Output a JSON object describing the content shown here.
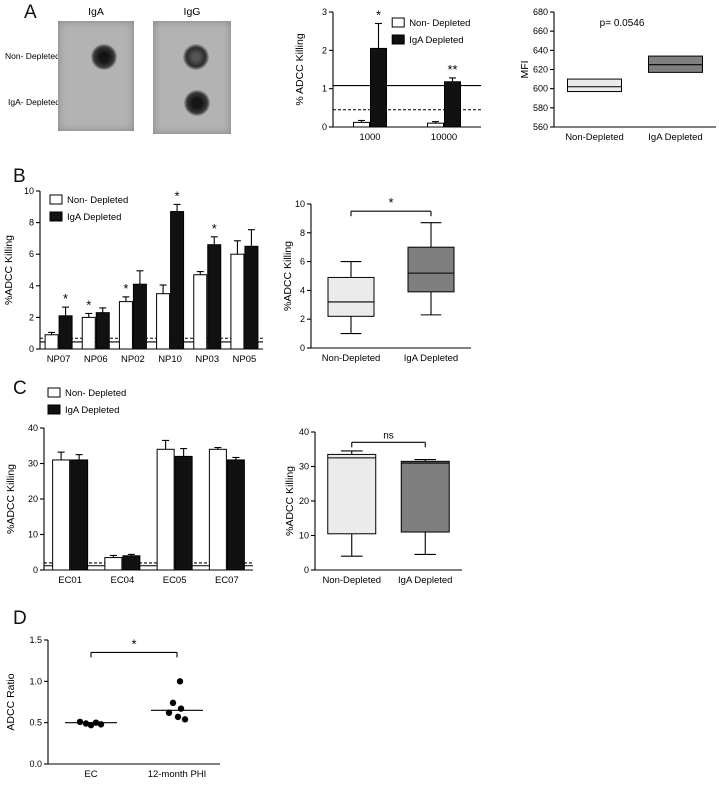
{
  "panels": {
    "A": "A",
    "B": "B",
    "C": "C",
    "D": "D"
  },
  "dot_blot": {
    "column_labels": [
      "IgA",
      "IgG"
    ],
    "row_labels": [
      "Non- Depleted",
      "IgA- Depleted"
    ],
    "spots": [
      {
        "membrane": "IgA",
        "row": "Non- Depleted",
        "appearance": "dark"
      },
      {
        "membrane": "IgG",
        "row": "Non- Depleted",
        "appearance": "dark-ring"
      },
      {
        "membrane": "IgG",
        "row": "IgA- Depleted",
        "appearance": "dark"
      }
    ]
  },
  "colors": {
    "non_depleted_fill": "#ffffff",
    "iga_depleted_fill": "#111111",
    "box_light": "#ebebeb",
    "box_dark": "#7f7f7f"
  },
  "chart_data": [
    {
      "id": "a_bar",
      "type": "bar",
      "ylabel": "% ADCC Killing",
      "ylim": [
        0,
        3
      ],
      "yticks": [
        0,
        1,
        2,
        3
      ],
      "ytick_labels": [
        "0",
        "1",
        "2",
        "3"
      ],
      "categories": [
        "1000",
        "10000"
      ],
      "series": [
        {
          "name": "Non- Depleted",
          "fill": "#ffffff",
          "values": [
            0.12,
            0.1
          ],
          "errors": [
            0.05,
            0.04
          ]
        },
        {
          "name": "IgA Depleted",
          "fill": "#111111",
          "values": [
            2.05,
            1.18
          ],
          "errors": [
            0.65,
            0.1
          ]
        }
      ],
      "hlines": [
        {
          "y": 1.08,
          "dash": false
        },
        {
          "y": 0.45,
          "dash": true
        }
      ],
      "stars": [
        {
          "text": "*",
          "cat": 0,
          "series": 1
        },
        {
          "text": "**",
          "cat": 1,
          "series": 1
        }
      ],
      "legend_pos": "inside-top-right"
    },
    {
      "id": "a_box",
      "type": "box",
      "ylabel": "MFI",
      "ylim": [
        560,
        680
      ],
      "yticks": [
        560,
        580,
        600,
        620,
        640,
        660,
        680
      ],
      "ytick_labels": [
        "560",
        "580",
        "600",
        "620",
        "640",
        "660",
        "680"
      ],
      "categories": [
        "Non-Depleted",
        "IgA Depleted"
      ],
      "boxes": [
        {
          "whislo": 597,
          "q1": 597,
          "med": 602,
          "q3": 610,
          "whishi": 610,
          "fill": "#ebebeb"
        },
        {
          "whislo": 617,
          "q1": 617,
          "med": 625,
          "q3": 634,
          "whishi": 634,
          "fill": "#7f7f7f"
        }
      ],
      "note": "p= 0.0546"
    },
    {
      "id": "b_bar",
      "type": "bar",
      "ylabel": "%ADCC Killing",
      "ylim": [
        0,
        10
      ],
      "yticks": [
        0,
        2,
        4,
        6,
        8,
        10
      ],
      "ytick_labels": [
        "0",
        "2",
        "4",
        "6",
        "8",
        "10"
      ],
      "categories": [
        "NP07",
        "NP06",
        "NP02",
        "NP10",
        "NP03",
        "NP05"
      ],
      "series": [
        {
          "name": "Non- Depleted",
          "fill": "#ffffff",
          "values": [
            0.9,
            2.0,
            3.0,
            3.5,
            4.7,
            6.0
          ],
          "errors": [
            0.15,
            0.25,
            0.3,
            0.55,
            0.2,
            0.85
          ]
        },
        {
          "name": "IgA Depleted",
          "fill": "#111111",
          "values": [
            2.1,
            2.3,
            4.1,
            8.7,
            6.6,
            6.5
          ],
          "errors": [
            0.55,
            0.3,
            0.85,
            0.45,
            0.5,
            1.05
          ]
        }
      ],
      "hlines": [
        {
          "y": 0.68,
          "dash": true
        },
        {
          "y": 0.45,
          "dash": false
        }
      ],
      "stars": [
        {
          "text": "*",
          "cat": 0,
          "series": 1
        },
        {
          "text": "*",
          "cat": 1,
          "series": 0
        },
        {
          "text": "*",
          "cat": 2,
          "series": 0
        },
        {
          "text": "*",
          "cat": 3,
          "series": 1
        },
        {
          "text": "*",
          "cat": 4,
          "series": 1
        }
      ],
      "legend_pos": "inside-top-left"
    },
    {
      "id": "b_box",
      "type": "box",
      "ylabel": "%ADCC Killing",
      "ylim": [
        0,
        10
      ],
      "yticks": [
        0,
        2,
        4,
        6,
        8,
        10
      ],
      "ytick_labels": [
        "0",
        "2",
        "4",
        "6",
        "8",
        "10"
      ],
      "categories": [
        "Non-Depleted",
        "IgA Depleted"
      ],
      "boxes": [
        {
          "whislo": 1.0,
          "q1": 2.2,
          "med": 3.2,
          "q3": 4.9,
          "whishi": 6.0,
          "fill": "#ebebeb"
        },
        {
          "whislo": 2.3,
          "q1": 3.9,
          "med": 5.2,
          "q3": 7.0,
          "whishi": 8.7,
          "fill": "#7f7f7f"
        }
      ],
      "bracket": {
        "text": "*",
        "y": 9.5
      }
    },
    {
      "id": "c_bar",
      "type": "bar",
      "ylabel": "%ADCC Killing",
      "ylim": [
        0,
        40
      ],
      "yticks": [
        0,
        10,
        20,
        30,
        40
      ],
      "ytick_labels": [
        "0",
        "10",
        "20",
        "30",
        "40"
      ],
      "categories": [
        "EC01",
        "EC04",
        "EC05",
        "EC07"
      ],
      "series": [
        {
          "name": "Non- Depleted",
          "fill": "#ffffff",
          "values": [
            31,
            3.5,
            34,
            34
          ],
          "errors": [
            2.2,
            0.6,
            2.5,
            0.5
          ]
        },
        {
          "name": "IgA Depleted",
          "fill": "#111111",
          "values": [
            31,
            4,
            32,
            31
          ],
          "errors": [
            1.5,
            0.4,
            2.2,
            0.7
          ]
        }
      ],
      "hlines": [
        {
          "y": 2.0,
          "dash": true
        },
        {
          "y": 1.2,
          "dash": false
        }
      ],
      "stars": [],
      "legend_pos": "above-left"
    },
    {
      "id": "c_box",
      "type": "box",
      "ylabel": "%ADCC Killing",
      "ylim": [
        0,
        40
      ],
      "yticks": [
        0,
        10,
        20,
        30,
        40
      ],
      "ytick_labels": [
        "0",
        "10",
        "20",
        "30",
        "40"
      ],
      "categories": [
        "Non-Depleted",
        "IgA Depleted"
      ],
      "boxes": [
        {
          "whislo": 4,
          "q1": 10.5,
          "med": 32.5,
          "q3": 33.5,
          "whishi": 34.5,
          "fill": "#ebebeb"
        },
        {
          "whislo": 4.5,
          "q1": 11,
          "med": 31,
          "q3": 31.5,
          "whishi": 32,
          "fill": "#7f7f7f"
        }
      ],
      "bracket": {
        "text": "ns",
        "y": 37
      }
    },
    {
      "id": "d_scatter",
      "type": "scatter",
      "ylabel": "ADCC Ratio",
      "ylim": [
        0,
        1.5
      ],
      "yticks": [
        0,
        0.5,
        1,
        1.5
      ],
      "ytick_labels": [
        "0.0",
        "0.5",
        "1.0",
        "1.5"
      ],
      "categories": [
        "EC",
        "12-month PHI"
      ],
      "groups": [
        {
          "values": [
            0.51,
            0.49,
            0.47,
            0.5,
            0.48
          ],
          "jitter": [
            -11,
            -5,
            0,
            5,
            10
          ],
          "median": 0.5
        },
        {
          "values": [
            1.0,
            0.74,
            0.67,
            0.62,
            0.57,
            0.54
          ],
          "jitter": [
            3,
            -4,
            4,
            -8,
            1,
            8
          ],
          "median": 0.65
        }
      ],
      "bracket": {
        "text": "*",
        "y": 1.35
      }
    }
  ]
}
